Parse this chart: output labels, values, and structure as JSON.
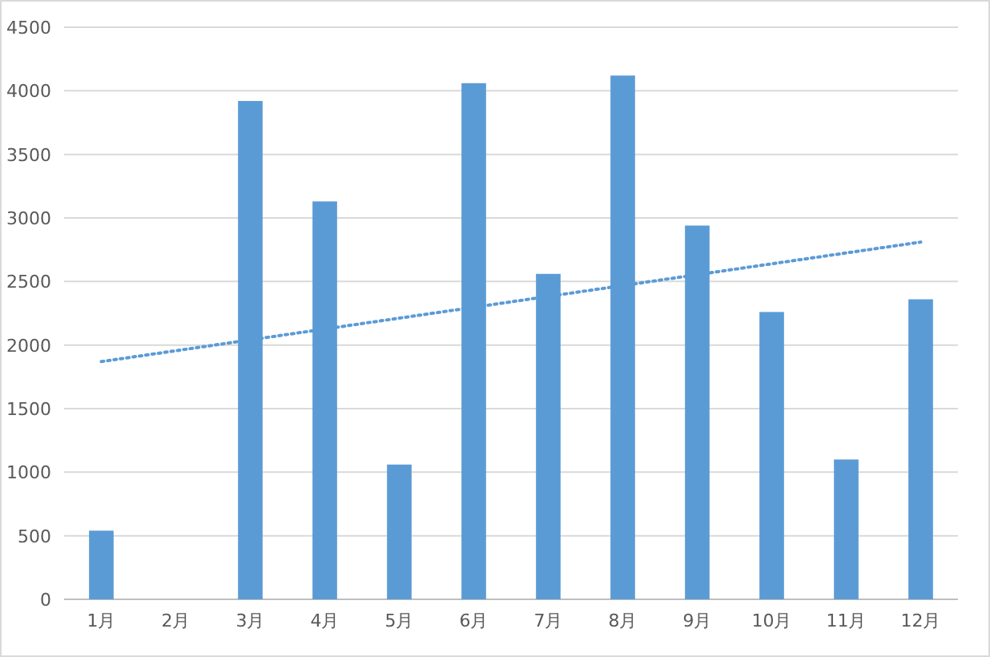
{
  "chart_data": {
    "type": "bar",
    "categories": [
      "1月",
      "2月",
      "3月",
      "4月",
      "5月",
      "6月",
      "7月",
      "8月",
      "9月",
      "10月",
      "11月",
      "12月"
    ],
    "series": [
      {
        "color": "#5b9bd5",
        "values": [
          540,
          0,
          3920,
          3130,
          1060,
          4060,
          2560,
          4120,
          2940,
          2260,
          1100,
          2360
        ]
      },
      {
        "type": "line",
        "color": "#5b9bd5",
        "line_style": "dotted",
        "x": [
          "1月",
          "12月"
        ],
        "values": [
          1870,
          2810
        ]
      }
    ],
    "ylim": [
      0,
      4500
    ],
    "yticks": [
      0,
      500,
      1000,
      1500,
      2000,
      2500,
      3000,
      3500,
      4000,
      4500
    ],
    "grid": "y"
  }
}
